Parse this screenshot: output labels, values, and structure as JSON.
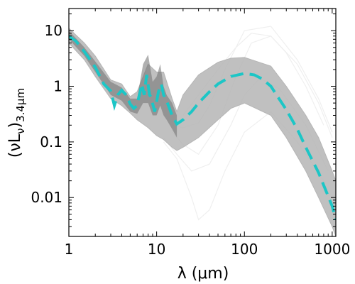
{
  "chart_data": {
    "type": "line",
    "xlabel": "λ (μm)",
    "ylabel": "(νLν)3.4μm",
    "ylabel_parts": {
      "main": "(νL",
      "nu": "ν",
      "close": ")",
      "sub": "3.4μm"
    },
    "x_scale": "log",
    "y_scale": "log",
    "xlim": [
      1,
      1100
    ],
    "ylim": [
      0.002,
      25
    ],
    "x_ticks": [
      1,
      10,
      100,
      1000
    ],
    "x_tick_labels": [
      "1",
      "10",
      "100",
      "1000"
    ],
    "y_ticks": [
      0.01,
      0.1,
      1,
      10
    ],
    "y_tick_labels": [
      "0.01",
      "0.1",
      "1",
      "10"
    ],
    "grid": false,
    "colors": {
      "median": "#1cc6c6",
      "envelope": "#b5b5b5",
      "dense_core": "#707070",
      "faint_tracks": "#efefef"
    },
    "series": [
      {
        "style": "dashed",
        "x": [
          1,
          1.2,
          1.5,
          2,
          2.5,
          3,
          3.3,
          3.6,
          4,
          4.5,
          5,
          5.5,
          6,
          6.2,
          6.8,
          7.2,
          7.7,
          8.3,
          8.6,
          9.5,
          10.5,
          11.3,
          12,
          13,
          15,
          17,
          20,
          25,
          30,
          40,
          50,
          70,
          100,
          130,
          160,
          200,
          300,
          400,
          500,
          700,
          1000,
          1100
        ],
        "y": [
          8,
          6.5,
          4.2,
          2.2,
          1.1,
          0.82,
          0.45,
          0.7,
          0.85,
          0.7,
          0.48,
          0.4,
          0.45,
          0.6,
          1.1,
          0.7,
          1.6,
          0.7,
          0.65,
          0.35,
          0.8,
          1.1,
          0.7,
          0.55,
          0.3,
          0.21,
          0.25,
          0.35,
          0.5,
          0.8,
          1.1,
          1.5,
          1.7,
          1.6,
          1.35,
          1.0,
          0.38,
          0.17,
          0.08,
          0.028,
          0.007,
          0.004
        ]
      }
    ],
    "envelope": {
      "x": [
        1,
        1.5,
        2,
        3,
        4,
        5,
        6,
        8,
        10,
        12,
        15,
        17,
        20,
        30,
        50,
        70,
        100,
        200,
        300,
        500,
        700,
        1000,
        1100
      ],
      "upper": [
        11,
        6,
        3.5,
        1.3,
        1.1,
        0.65,
        0.8,
        2.5,
        1.8,
        1.8,
        0.6,
        0.35,
        0.7,
        1.6,
        2.7,
        3.2,
        3.3,
        2.3,
        1.0,
        0.3,
        0.12,
        0.03,
        0.02
      ],
      "lower": [
        6,
        3,
        1.5,
        0.6,
        0.45,
        0.33,
        0.25,
        0.18,
        0.13,
        0.11,
        0.08,
        0.07,
        0.08,
        0.12,
        0.25,
        0.4,
        0.5,
        0.3,
        0.12,
        0.03,
        0.01,
        0.003,
        0.002
      ]
    },
    "dense_core": {
      "x": [
        1,
        1.5,
        2,
        3,
        4,
        5,
        6,
        7,
        8,
        9,
        10,
        11,
        12,
        13,
        15,
        17
      ],
      "upper": [
        10,
        5,
        2.8,
        1.2,
        0.95,
        0.6,
        0.6,
        2.5,
        3.7,
        1.2,
        1.5,
        2.5,
        1.0,
        0.7,
        0.5,
        0.3
      ],
      "lower": [
        7,
        3.5,
        1.8,
        0.7,
        0.55,
        0.35,
        0.32,
        0.5,
        0.5,
        0.3,
        0.3,
        0.45,
        0.3,
        0.25,
        0.17,
        0.12
      ]
    },
    "faint_tracks": [
      {
        "x": [
          15,
          20,
          30,
          40,
          60,
          100,
          200,
          400,
          700,
          1000
        ],
        "y": [
          0.2,
          0.18,
          0.22,
          0.45,
          2.0,
          10,
          12,
          3.0,
          0.6,
          0.15
        ]
      },
      {
        "x": [
          15,
          20,
          30,
          50,
          80,
          120,
          200,
          400,
          700,
          1000
        ],
        "y": [
          0.15,
          0.09,
          0.06,
          0.2,
          1.5,
          6,
          8,
          2.5,
          0.5,
          0.12
        ]
      },
      {
        "x": [
          12,
          17,
          25,
          30,
          40,
          60,
          100,
          200,
          400,
          800
        ],
        "y": [
          0.1,
          0.05,
          0.01,
          0.004,
          0.006,
          0.03,
          0.15,
          0.35,
          0.1,
          0.02
        ]
      },
      {
        "x": [
          12,
          17,
          25,
          40,
          70,
          100,
          150,
          250,
          500,
          900
        ],
        "y": [
          0.12,
          0.06,
          0.03,
          0.04,
          0.2,
          0.7,
          1.4,
          0.9,
          0.2,
          0.03
        ]
      },
      {
        "x": [
          20,
          30,
          50,
          80,
          120,
          200,
          300,
          500,
          800
        ],
        "y": [
          0.3,
          0.7,
          2.0,
          5.0,
          9.0,
          8.0,
          4.0,
          1.0,
          0.2
        ]
      }
    ]
  }
}
